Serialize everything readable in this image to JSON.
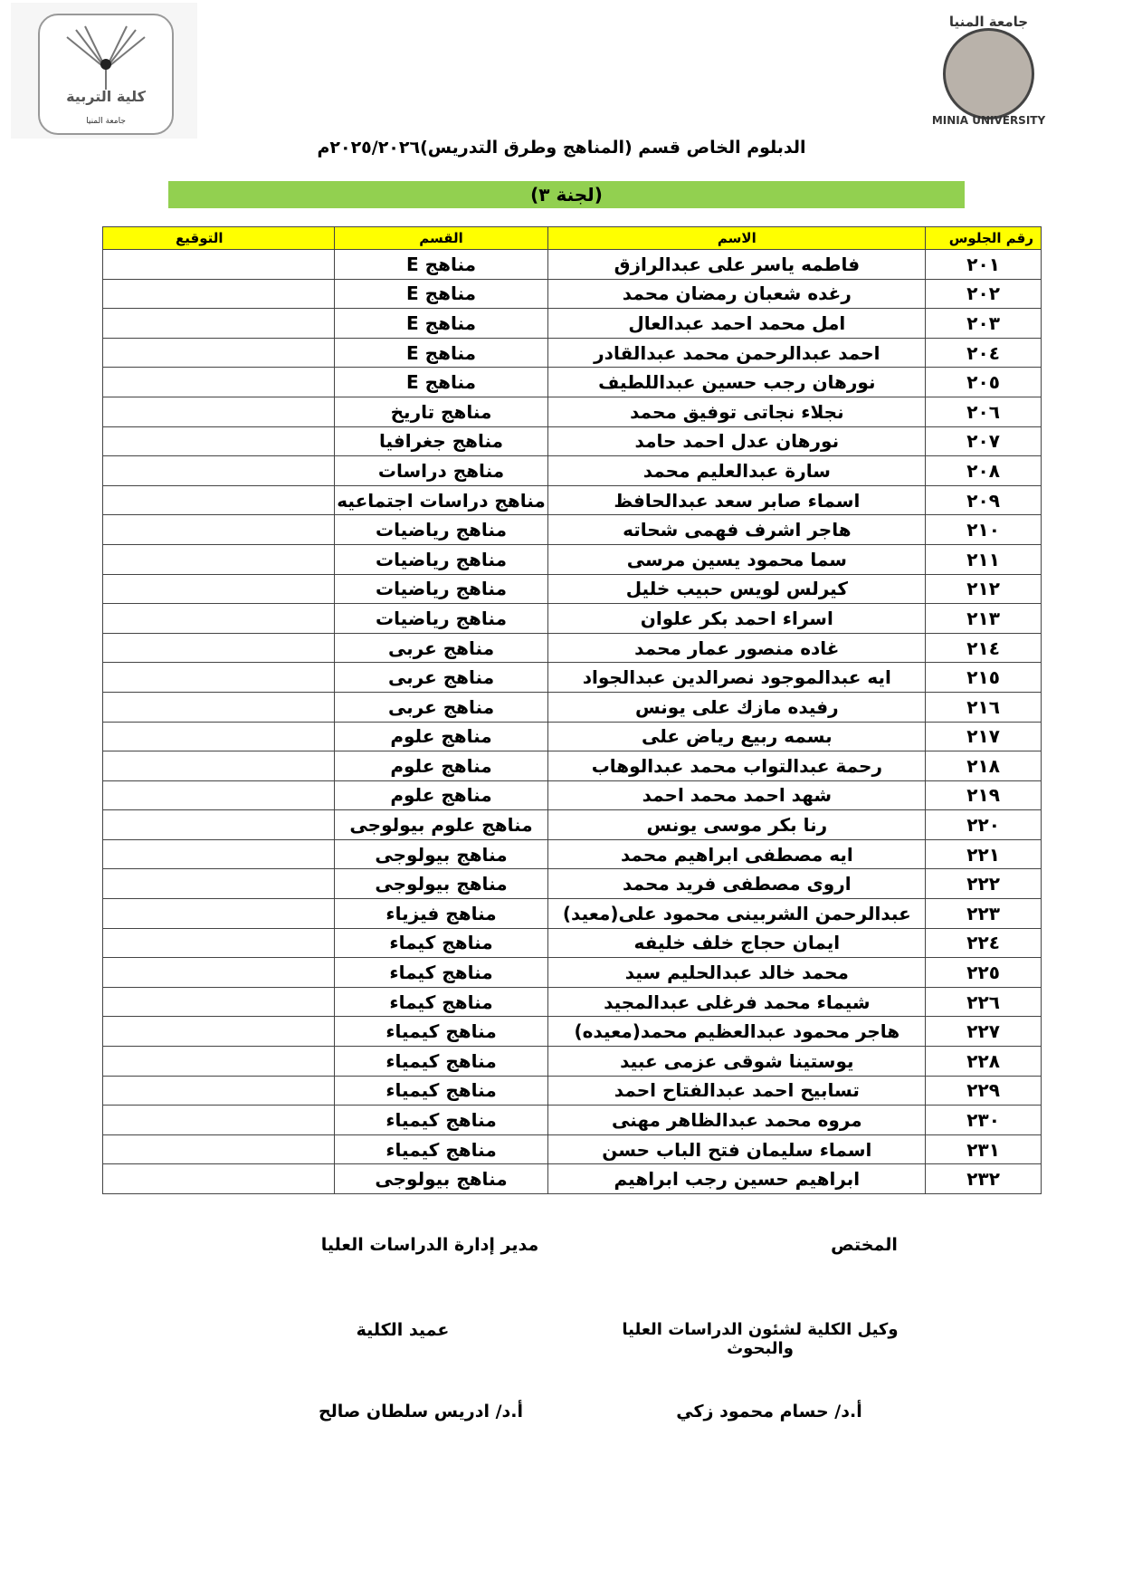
{
  "header": {
    "left_logo": {
      "text": "كلية التربية",
      "subtext": "جامعة المنيا"
    },
    "right_logo": {
      "text": "جامعة المنيا",
      "subtext": "MINIA UNIVERSITY"
    },
    "title": "الدبلوم الخاص قسم (المناهج وطرق التدريس)٢٠٢٥/٢٠٢٦م",
    "committee": "(لجنة ٣)"
  },
  "table": {
    "columns": [
      "رقم الجلوس",
      "الاسم",
      "القسم",
      "التوقيع"
    ],
    "rows": [
      {
        "seat": "٢٠١",
        "name": "فاطمه ياسر على عبدالرازق",
        "dept": "مناهج E",
        "signature": ""
      },
      {
        "seat": "٢٠٢",
        "name": "رغده شعبان رمضان محمد",
        "dept": "مناهج E",
        "signature": ""
      },
      {
        "seat": "٢٠٣",
        "name": "امل محمد احمد عبدالعال",
        "dept": "مناهج E",
        "signature": ""
      },
      {
        "seat": "٢٠٤",
        "name": "احمد عبدالرحمن محمد عبدالقادر",
        "dept": "مناهج E",
        "signature": ""
      },
      {
        "seat": "٢٠٥",
        "name": "نورهان رجب حسين عبداللطيف",
        "dept": "مناهج E",
        "signature": ""
      },
      {
        "seat": "٢٠٦",
        "name": "نجلاء نجاتى توفيق محمد",
        "dept": "مناهج تاريخ",
        "signature": ""
      },
      {
        "seat": "٢٠٧",
        "name": "نورهان عدل احمد حامد",
        "dept": "مناهج جغرافيا",
        "signature": ""
      },
      {
        "seat": "٢٠٨",
        "name": "سارة عبدالعليم محمد",
        "dept": "مناهج دراسات",
        "signature": ""
      },
      {
        "seat": "٢٠٩",
        "name": "اسماء صابر سعد عبدالحافظ",
        "dept": "مناهج دراسات اجتماعيه",
        "signature": ""
      },
      {
        "seat": "٢١٠",
        "name": "هاجر اشرف فهمى شحاته",
        "dept": "مناهج رياضيات",
        "signature": ""
      },
      {
        "seat": "٢١١",
        "name": "سما محمود يسين مرسى",
        "dept": "مناهج رياضيات",
        "signature": ""
      },
      {
        "seat": "٢١٢",
        "name": "كيرلس لويس حبيب خليل",
        "dept": "مناهج رياضيات",
        "signature": ""
      },
      {
        "seat": "٢١٣",
        "name": "اسراء احمد بكر علوان",
        "dept": "مناهج رياضيات",
        "signature": ""
      },
      {
        "seat": "٢١٤",
        "name": "غاده منصور عمار محمد",
        "dept": "مناهج عربى",
        "signature": ""
      },
      {
        "seat": "٢١٥",
        "name": "ايه عبدالموجود نصرالدين  عبدالجواد",
        "dept": "مناهج عربى",
        "signature": ""
      },
      {
        "seat": "٢١٦",
        "name": "رفيده مازك على يونس",
        "dept": "مناهج عربى",
        "signature": ""
      },
      {
        "seat": "٢١٧",
        "name": "بسمه ربيع رياض على",
        "dept": "مناهج علوم",
        "signature": ""
      },
      {
        "seat": "٢١٨",
        "name": "رحمة عبدالتواب محمد عبدالوهاب",
        "dept": "مناهج علوم",
        "signature": ""
      },
      {
        "seat": "٢١٩",
        "name": "شهد احمد محمد احمد",
        "dept": "مناهج علوم",
        "signature": ""
      },
      {
        "seat": "٢٢٠",
        "name": "رنا بكر موسى يونس",
        "dept": "مناهج علوم بيولوجى",
        "signature": ""
      },
      {
        "seat": "٢٢١",
        "name": "ايه مصطفى ابراهيم محمد",
        "dept": "مناهج بيولوجى",
        "signature": ""
      },
      {
        "seat": "٢٢٢",
        "name": "اروى مصطفى فريد محمد",
        "dept": "مناهج بيولوجى",
        "signature": ""
      },
      {
        "seat": "٢٢٣",
        "name": "عبدالرحمن الشربينى محمود على(معيد)",
        "dept": "مناهج فيزياء",
        "signature": ""
      },
      {
        "seat": "٢٢٤",
        "name": "ايمان حجاج خلف خليفه",
        "dept": "مناهج كيماء",
        "signature": ""
      },
      {
        "seat": "٢٢٥",
        "name": "محمد خالد عبدالحليم سيد",
        "dept": "مناهج كيماء",
        "signature": ""
      },
      {
        "seat": "٢٢٦",
        "name": "شيماء محمد فرغلى عبدالمجيد",
        "dept": "مناهج كيماء",
        "signature": ""
      },
      {
        "seat": "٢٢٧",
        "name": "هاجر محمود عبدالعظيم محمد(معيده)",
        "dept": "مناهج كيمياء",
        "signature": ""
      },
      {
        "seat": "٢٢٨",
        "name": "يوستينا شوقى عزمى عبيد",
        "dept": "مناهج  كيمياء",
        "signature": ""
      },
      {
        "seat": "٢٢٩",
        "name": "تسابيح احمد عبدالفتاح احمد",
        "dept": "مناهج كيمياء",
        "signature": ""
      },
      {
        "seat": "٢٣٠",
        "name": "مروه محمد عبدالظاهر مهنى",
        "dept": "مناهج كيمياء",
        "signature": ""
      },
      {
        "seat": "٢٣١",
        "name": "اسماء سليمان فتح الباب حسن",
        "dept": "مناهج كيمياء",
        "signature": ""
      },
      {
        "seat": "٢٣٢",
        "name": "ابراهيم حسين رجب ابراهيم",
        "dept": "مناهج بيولوجى",
        "signature": ""
      }
    ]
  },
  "footer": {
    "specialist": "المختص",
    "grad_admin_director": "مدير إدارة الدراسات العليا",
    "vice_dean_line1": "وكيل الكلية لشئون الدراسات العليا",
    "vice_dean_line2": "والبحوث",
    "dean": "عميد الكلية",
    "vice_dean_name": "أ.د/ حسام محمود زكي",
    "dean_name": "أ.د/ ادريس سلطان صالح"
  },
  "colors": {
    "header_row": "#ffff00",
    "committee_bar": "#92d050"
  }
}
